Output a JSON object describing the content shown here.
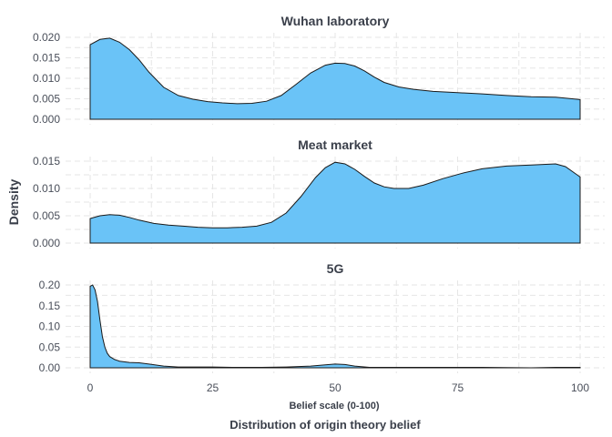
{
  "chart_data": {
    "type": "area",
    "fill_color": "#6ac3f7",
    "line_color": "#1a1a1a",
    "ylabel": "Density",
    "xlabel": "Belief scale (0-100)",
    "caption": "Distribution of origin theory belief",
    "xlim": [
      0,
      100
    ],
    "x_ticks": [
      0,
      25,
      50,
      75,
      100
    ],
    "x_tick_labels": [
      "0",
      "25",
      "50",
      "75",
      "100"
    ],
    "grid": true,
    "panels": [
      {
        "title": "Wuhan laboratory",
        "ylim": [
          0,
          0.02
        ],
        "y_ticks": [
          0,
          0.005,
          0.01,
          0.015,
          0.02
        ],
        "y_tick_labels": [
          "0.000",
          "0.005",
          "0.010",
          "0.015",
          "0.020"
        ],
        "x": [
          0,
          2,
          4,
          6,
          8,
          10,
          12,
          15,
          18,
          21,
          24,
          27,
          30,
          33,
          36,
          39,
          42,
          45,
          48,
          50,
          52,
          54,
          56,
          58,
          60,
          63,
          66,
          70,
          75,
          80,
          85,
          90,
          95,
          100
        ],
        "y": [
          0.0182,
          0.0195,
          0.0198,
          0.0188,
          0.017,
          0.0145,
          0.0115,
          0.0078,
          0.0058,
          0.0049,
          0.0043,
          0.004,
          0.0038,
          0.0039,
          0.0044,
          0.0058,
          0.0085,
          0.0113,
          0.0132,
          0.0137,
          0.0136,
          0.013,
          0.0118,
          0.0103,
          0.009,
          0.0079,
          0.0073,
          0.0068,
          0.0065,
          0.0062,
          0.0058,
          0.0055,
          0.0054,
          0.0048
        ]
      },
      {
        "title": "Meat market",
        "ylim": [
          0,
          0.015
        ],
        "y_ticks": [
          0,
          0.005,
          0.01,
          0.015
        ],
        "y_tick_labels": [
          "0.000",
          "0.005",
          "0.010",
          "0.015"
        ],
        "x": [
          0,
          2,
          4,
          6,
          8,
          10,
          13,
          16,
          19,
          22,
          25,
          28,
          31,
          34,
          37,
          40,
          43,
          46,
          48,
          50,
          52,
          54,
          56,
          58,
          60,
          62,
          65,
          68,
          72,
          76,
          80,
          85,
          90,
          95,
          97,
          100
        ],
        "y": [
          0.0045,
          0.005,
          0.0052,
          0.0051,
          0.0047,
          0.0042,
          0.0036,
          0.0033,
          0.0031,
          0.0029,
          0.0028,
          0.0028,
          0.0029,
          0.0031,
          0.0038,
          0.0055,
          0.0085,
          0.012,
          0.0138,
          0.0148,
          0.0145,
          0.0135,
          0.0122,
          0.011,
          0.0103,
          0.01,
          0.01,
          0.0106,
          0.0118,
          0.0128,
          0.0136,
          0.0141,
          0.0143,
          0.0145,
          0.014,
          0.0121
        ]
      },
      {
        "title": "5G",
        "ylim": [
          0,
          0.2
        ],
        "y_ticks": [
          0,
          0.05,
          0.1,
          0.15,
          0.2
        ],
        "y_tick_labels": [
          "0.00",
          "0.05",
          "0.10",
          "0.15",
          "0.20"
        ],
        "x": [
          0,
          0.5,
          1,
          1.5,
          2,
          2.5,
          3,
          3.5,
          4,
          5,
          6,
          8,
          10,
          12,
          15,
          18,
          21,
          25,
          30,
          35,
          40,
          45,
          48,
          50,
          52,
          54,
          57,
          60,
          65,
          70,
          80,
          90,
          95,
          100
        ],
        "y": [
          0.197,
          0.2,
          0.188,
          0.16,
          0.115,
          0.075,
          0.05,
          0.035,
          0.027,
          0.02,
          0.016,
          0.013,
          0.012,
          0.009,
          0.004,
          0.002,
          0.002,
          0.002,
          0.001,
          0.001,
          0.002,
          0.004,
          0.007,
          0.009,
          0.008,
          0.004,
          0.001,
          0.001,
          0.001,
          0.001,
          0.001,
          0.0,
          0.001,
          0.001
        ]
      }
    ]
  }
}
